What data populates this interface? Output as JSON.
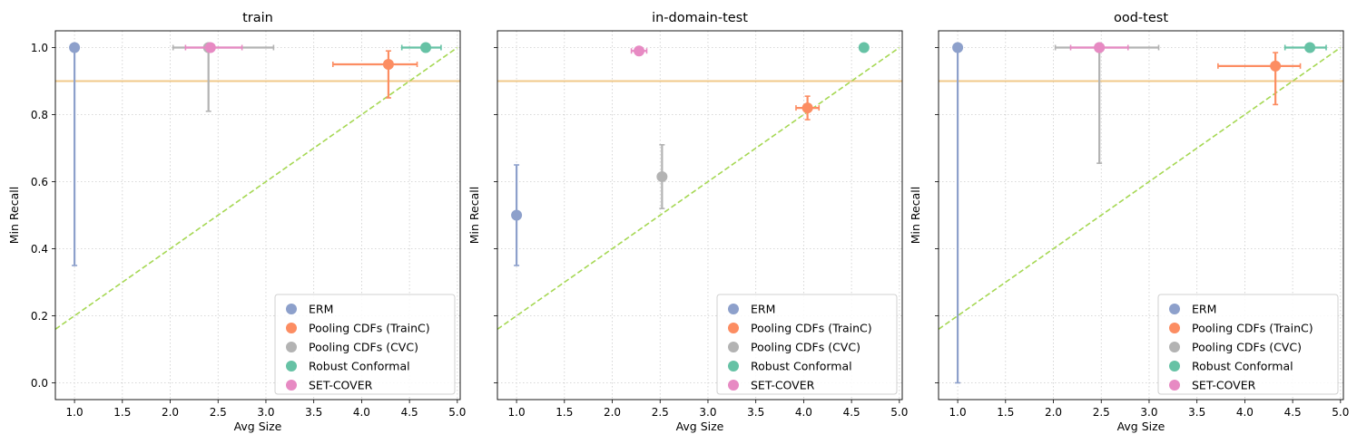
{
  "chart_data": [
    {
      "type": "scatter",
      "title": "train",
      "xlabel": "Avg Size",
      "ylabel": "Min Recall",
      "xlim": [
        0.8,
        5.03
      ],
      "ylim": [
        -0.05,
        1.05
      ],
      "xticks": [
        "1.0",
        "1.5",
        "2.0",
        "2.5",
        "3.0",
        "3.5",
        "4.0",
        "4.5",
        "5.0"
      ],
      "yticks": [
        "0.0",
        "0.2",
        "0.4",
        "0.6",
        "0.8",
        "1.0"
      ],
      "show_yticklabels": true,
      "grid": true,
      "hline": 0.9,
      "diagonal": {
        "x": [
          0.8,
          5.0
        ],
        "y": [
          0.16,
          1.0
        ]
      },
      "legend_position": "lower-right",
      "series": [
        {
          "name": "ERM",
          "x": 1.0,
          "y": 1.0,
          "xerr": [
            1.0,
            1.0
          ],
          "yerr": [
            0.35,
            1.0
          ]
        },
        {
          "name": "Pooling CDFs (TrainC)",
          "x": 4.28,
          "y": 0.95,
          "xerr": [
            3.7,
            4.58
          ],
          "yerr": [
            0.85,
            0.99
          ]
        },
        {
          "name": "Pooling CDFs (CVC)",
          "x": 2.4,
          "y": 1.0,
          "xerr": [
            2.03,
            3.08
          ],
          "yerr": [
            0.81,
            1.0
          ]
        },
        {
          "name": "Robust Conformal",
          "x": 4.67,
          "y": 1.0,
          "xerr": [
            4.42,
            4.83
          ],
          "yerr": [
            1.0,
            1.0
          ]
        },
        {
          "name": "SET-COVER",
          "x": 2.42,
          "y": 1.0,
          "xerr": [
            2.16,
            2.75
          ],
          "yerr": [
            1.0,
            1.0
          ]
        }
      ]
    },
    {
      "type": "scatter",
      "title": "in-domain-test",
      "xlabel": "Avg Size",
      "ylabel": "Min Recall",
      "xlim": [
        0.8,
        5.03
      ],
      "ylim": [
        -0.05,
        1.05
      ],
      "xticks": [
        "1.0",
        "1.5",
        "2.0",
        "2.5",
        "3.0",
        "3.5",
        "4.0",
        "4.5",
        "5.0"
      ],
      "yticks": [
        "0.0",
        "0.2",
        "0.4",
        "0.6",
        "0.8",
        "1.0"
      ],
      "show_yticklabels": false,
      "grid": true,
      "hline": 0.9,
      "diagonal": {
        "x": [
          0.8,
          5.0
        ],
        "y": [
          0.16,
          1.0
        ]
      },
      "legend_position": "lower-right",
      "series": [
        {
          "name": "ERM",
          "x": 1.0,
          "y": 0.5,
          "xerr": [
            1.0,
            1.0
          ],
          "yerr": [
            0.35,
            0.65
          ]
        },
        {
          "name": "Pooling CDFs (TrainC)",
          "x": 4.04,
          "y": 0.82,
          "xerr": [
            3.92,
            4.16
          ],
          "yerr": [
            0.785,
            0.855
          ]
        },
        {
          "name": "Pooling CDFs (CVC)",
          "x": 2.52,
          "y": 0.615,
          "xerr": [
            2.52,
            2.52
          ],
          "yerr": [
            0.52,
            0.71
          ]
        },
        {
          "name": "Robust Conformal",
          "x": 4.63,
          "y": 1.0,
          "xerr": [
            4.59,
            4.67
          ],
          "yerr": [
            1.0,
            1.0
          ]
        },
        {
          "name": "SET-COVER",
          "x": 2.28,
          "y": 0.99,
          "xerr": [
            2.2,
            2.36
          ],
          "yerr": [
            0.982,
            0.998
          ]
        }
      ]
    },
    {
      "type": "scatter",
      "title": "ood-test",
      "xlabel": "Avg Size",
      "ylabel": "Min Recall",
      "xlim": [
        0.8,
        5.03
      ],
      "ylim": [
        -0.05,
        1.05
      ],
      "xticks": [
        "1.0",
        "1.5",
        "2.0",
        "2.5",
        "3.0",
        "3.5",
        "4.0",
        "4.5",
        "5.0"
      ],
      "yticks": [
        "0.0",
        "0.2",
        "0.4",
        "0.6",
        "0.8",
        "1.0"
      ],
      "show_yticklabels": false,
      "grid": true,
      "hline": 0.9,
      "diagonal": {
        "x": [
          0.8,
          5.0
        ],
        "y": [
          0.16,
          1.0
        ]
      },
      "legend_position": "lower-right",
      "series": [
        {
          "name": "ERM",
          "x": 1.0,
          "y": 1.0,
          "xerr": [
            1.0,
            1.0
          ],
          "yerr": [
            0.0,
            1.0
          ]
        },
        {
          "name": "Pooling CDFs (TrainC)",
          "x": 4.32,
          "y": 0.945,
          "xerr": [
            3.72,
            4.58
          ],
          "yerr": [
            0.83,
            0.985
          ]
        },
        {
          "name": "Pooling CDFs (CVC)",
          "x": 2.48,
          "y": 1.0,
          "xerr": [
            2.02,
            3.1
          ],
          "yerr": [
            0.655,
            1.0
          ]
        },
        {
          "name": "Robust Conformal",
          "x": 4.68,
          "y": 1.0,
          "xerr": [
            4.42,
            4.85
          ],
          "yerr": [
            1.0,
            1.0
          ]
        },
        {
          "name": "SET-COVER",
          "x": 2.48,
          "y": 1.0,
          "xerr": [
            2.18,
            2.78
          ],
          "yerr": [
            1.0,
            1.0
          ]
        }
      ]
    }
  ],
  "series_colors": {
    "ERM": "#8da0cb",
    "Pooling CDFs (TrainC)": "#fc8d62",
    "Pooling CDFs (CVC)": "#b3b3b3",
    "Robust Conformal": "#66c2a5",
    "SET-COVER": "#e78ac3"
  },
  "colors": {
    "hline": "#f0c98a",
    "diagonal": "#a6d854",
    "grid": "#cccccc"
  }
}
